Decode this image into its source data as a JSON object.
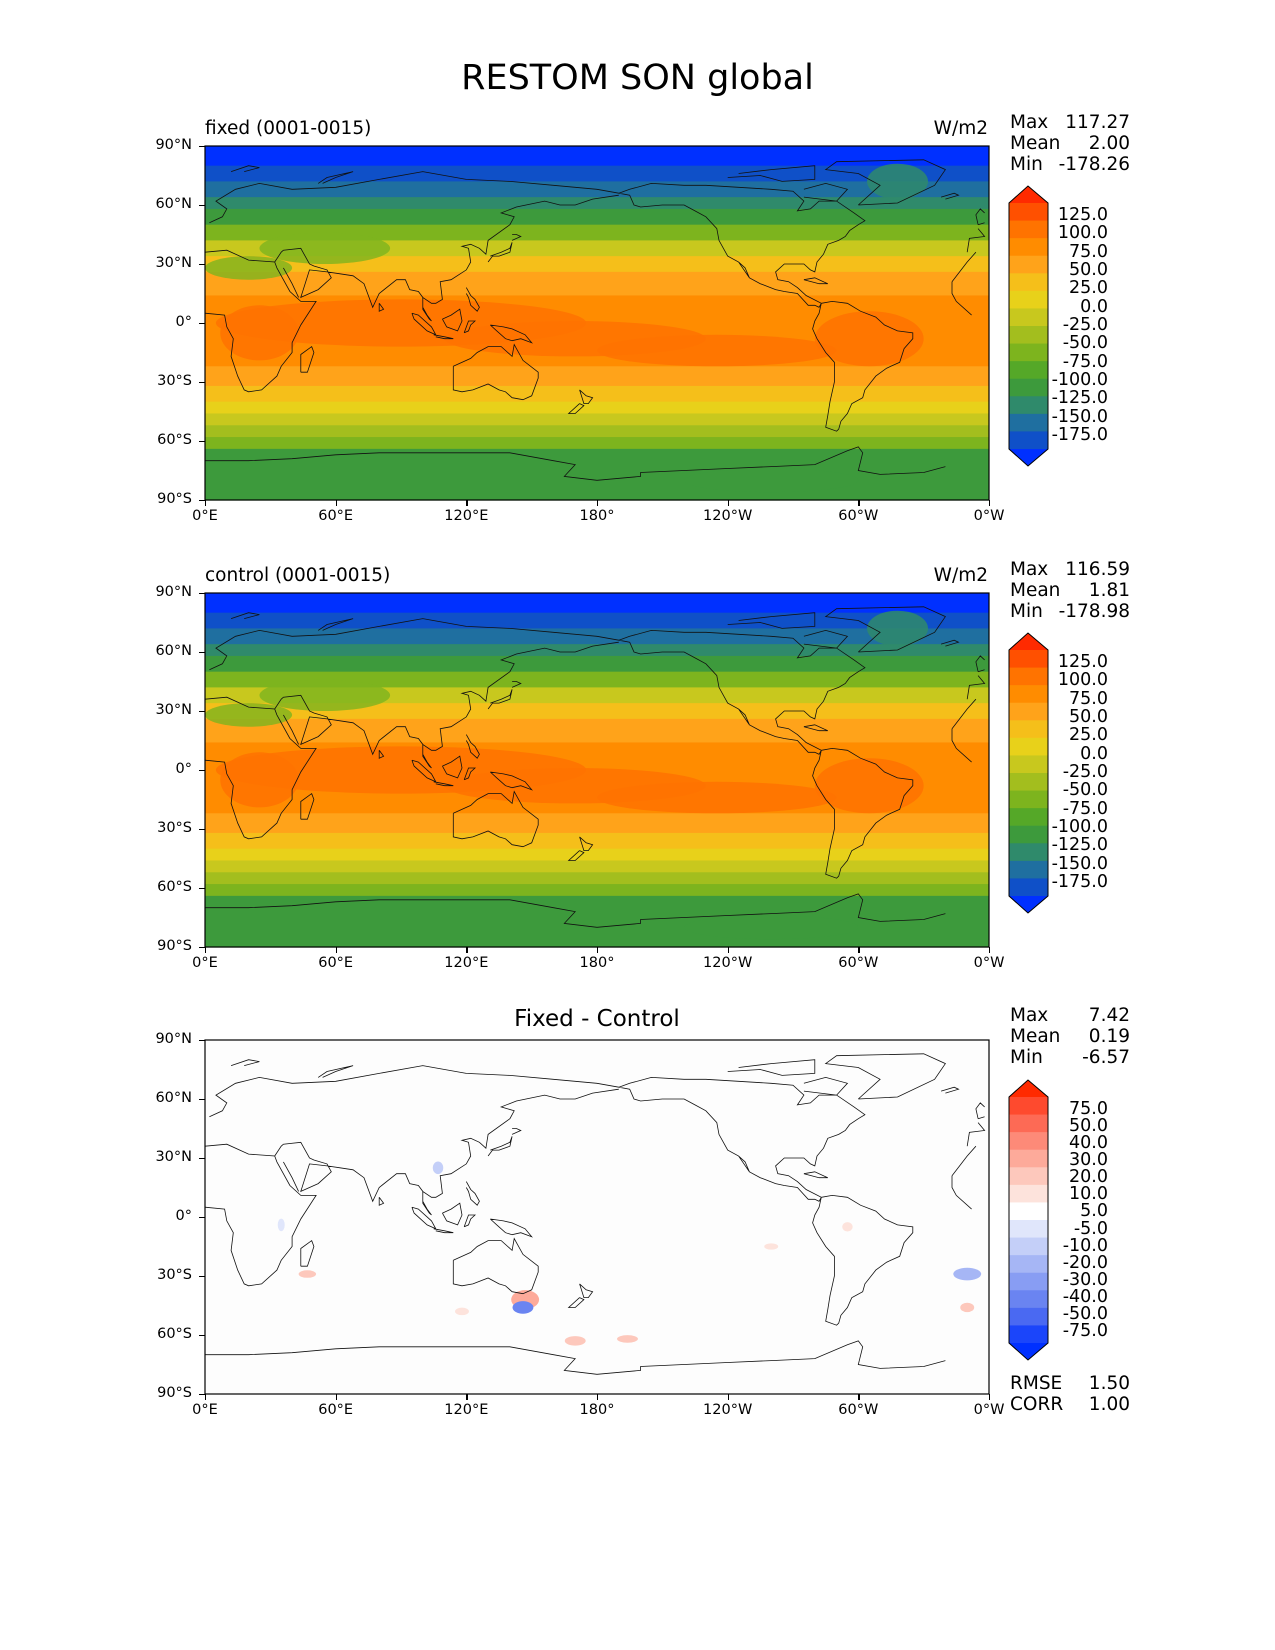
{
  "title": "RESTOM SON global",
  "lat_ticks": [
    "90°N",
    "60°N",
    "30°N",
    "0°",
    "30°S",
    "60°S",
    "90°S"
  ],
  "lon_ticks": [
    "0°E",
    "60°E",
    "120°E",
    "180°",
    "120°W",
    "60°W",
    "0°W"
  ],
  "panels": [
    {
      "label": "fixed (0001-0015)",
      "units": "W/m2",
      "stats": [
        {
          "name": "Max",
          "value": "117.27"
        },
        {
          "name": "Mean",
          "value": "2.00"
        },
        {
          "name": "Min",
          "value": "-178.26"
        }
      ]
    },
    {
      "label": "control (0001-0015)",
      "units": "W/m2",
      "stats": [
        {
          "name": "Max",
          "value": "116.59"
        },
        {
          "name": "Mean",
          "value": "1.81"
        },
        {
          "name": "Min",
          "value": "-178.98"
        }
      ]
    },
    {
      "title": "Fixed - Control",
      "stats": [
        {
          "name": "Max",
          "value": "7.42"
        },
        {
          "name": "Mean",
          "value": "0.19"
        },
        {
          "name": "Min",
          "value": "-6.57"
        }
      ],
      "extra_stats": [
        {
          "name": "RMSE",
          "value": "1.50"
        },
        {
          "name": "CORR",
          "value": "1.00"
        }
      ]
    }
  ],
  "colorbar_main": {
    "labels": [
      "125.0",
      "100.0",
      "75.0",
      "50.0",
      "25.0",
      "0.0",
      "-25.0",
      "-50.0",
      "-75.0",
      "-100.0",
      "-125.0",
      "-150.0",
      "-175.0"
    ],
    "colors": [
      "#ff2a00",
      "#ff5000",
      "#ff7300",
      "#ff8c00",
      "#ffa31a",
      "#f5bf1a",
      "#e8d11a",
      "#c8c81e",
      "#a3be1e",
      "#7db41e",
      "#55a828",
      "#3d9a3c",
      "#2f8a6b",
      "#1f6fa0",
      "#0f50c8",
      "#0030ff"
    ]
  },
  "colorbar_diff": {
    "labels": [
      "75.0",
      "50.0",
      "40.0",
      "30.0",
      "20.0",
      "10.0",
      "5.0",
      "-5.0",
      "-10.0",
      "-20.0",
      "-30.0",
      "-40.0",
      "-50.0",
      "-75.0"
    ],
    "colors": [
      "#ff2a00",
      "#fe4a2e",
      "#fd6a55",
      "#fd8a78",
      "#fdaa9a",
      "#fdc8bc",
      "#fde3dc",
      "#ffffff",
      "#e0e6fb",
      "#c4cff8",
      "#a6b6f5",
      "#889df3",
      "#6a84f1",
      "#4a69f2",
      "#1b45fa",
      "#0030ff"
    ]
  },
  "map_colors": {
    "polar_n": "#0030ff",
    "subpolar_n": "#1f6fa0",
    "mid_green": "#3d9a3c",
    "light_green": "#7db41e",
    "yellow_green": "#c8c81e",
    "yellow": "#f5bf1a",
    "orange": "#ffa31a",
    "deep_orange": "#ff8c00",
    "tropics": "#ff7300"
  }
}
